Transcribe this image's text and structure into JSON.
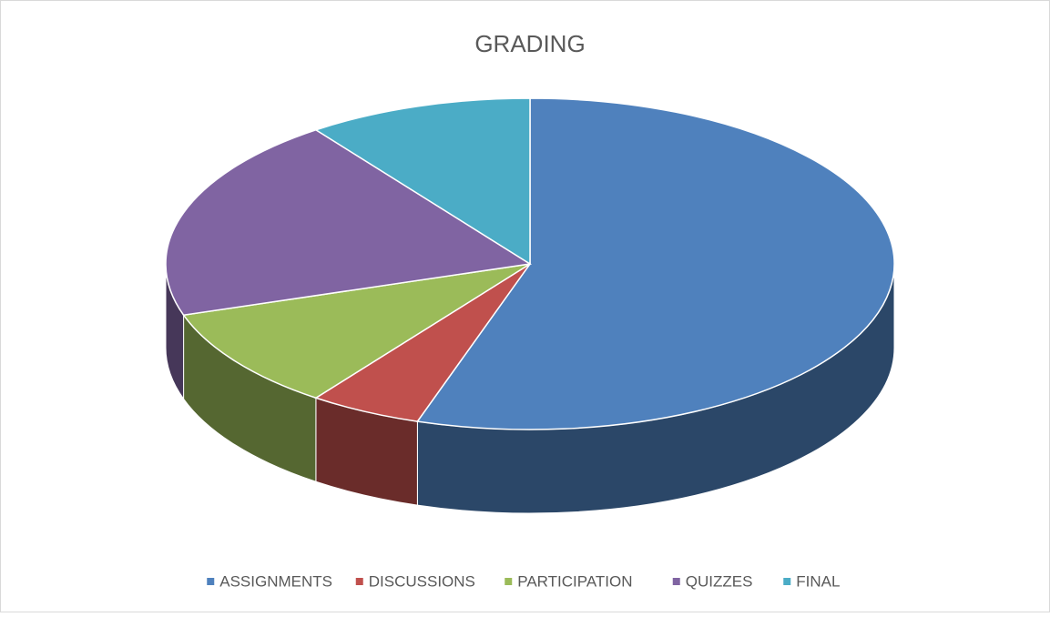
{
  "chart_data": {
    "type": "pie",
    "title": "GRADING",
    "categories": [
      "ASSIGNMENTS",
      "DISCUSSIONS",
      "PARTICIPATION",
      "QUIZZES",
      "FINAL"
    ],
    "values": [
      55,
      5,
      10,
      20,
      10
    ],
    "colors": [
      "#4f81bd",
      "#c0504d",
      "#9bbb59",
      "#8064a2",
      "#4bacc6"
    ],
    "legend": "bottom"
  }
}
